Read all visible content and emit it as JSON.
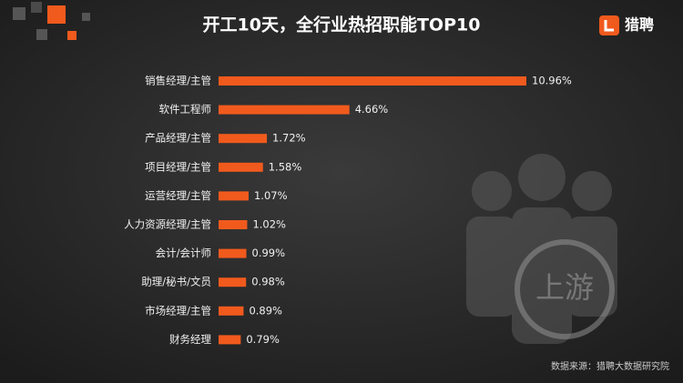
{
  "chart_data": {
    "type": "bar",
    "orientation": "horizontal",
    "title": "开工10天，全行业热招职能TOP10",
    "brand": "猎聘",
    "source": "数据来源：猎聘大数据研究院",
    "watermark": "上游",
    "categories": [
      "销售经理/主管",
      "软件工程师",
      "产品经理/主管",
      "项目经理/主管",
      "运营经理/主管",
      "人力资源经理/主管",
      "会计/会计师",
      "助理/秘书/文员",
      "市场经理/主管",
      "财务经理"
    ],
    "values": [
      10.96,
      4.66,
      1.72,
      1.58,
      1.07,
      1.02,
      0.99,
      0.98,
      0.89,
      0.79
    ],
    "value_labels": [
      "10.96%",
      "4.66%",
      "1.72%",
      "1.58%",
      "1.07%",
      "1.02%",
      "0.99%",
      "0.98%",
      "0.89%",
      "0.79%"
    ],
    "color": "#f15a1d"
  }
}
